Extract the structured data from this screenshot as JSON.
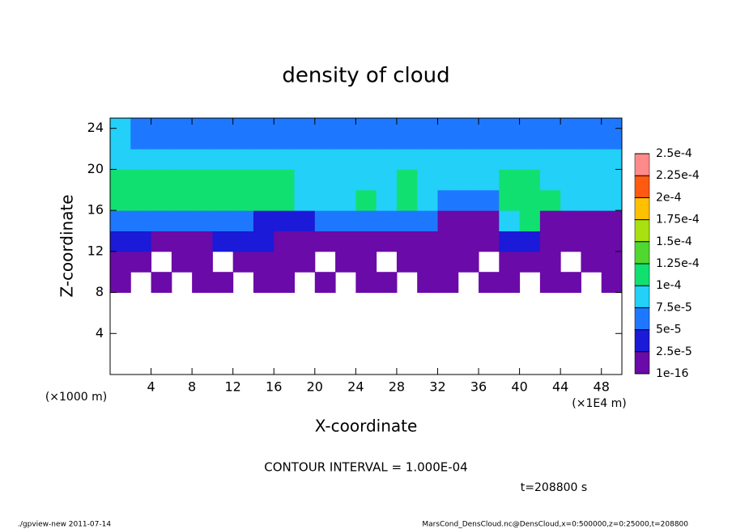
{
  "chart_data": {
    "type": "heatmap",
    "title": "density of cloud",
    "xlabel": "X-coordinate",
    "ylabel": "Z-coordinate",
    "x_unit": "(×1E4 m)",
    "y_unit": "(×1000 m)",
    "xlim": [
      0,
      50
    ],
    "ylim": [
      0,
      25
    ],
    "xticks": [
      4,
      8,
      12,
      16,
      20,
      24,
      28,
      32,
      36,
      40,
      44,
      48
    ],
    "yticks": [
      4,
      8,
      12,
      16,
      20,
      24
    ],
    "x_edges": [
      0,
      2,
      4,
      6,
      8,
      10,
      12,
      14,
      16,
      18,
      20,
      22,
      24,
      26,
      28,
      30,
      32,
      34,
      36,
      38,
      40,
      42,
      44,
      46,
      48,
      50
    ],
    "z_edges": [
      8,
      10,
      12,
      14,
      16,
      18,
      20,
      22,
      25
    ],
    "field": [
      [
        1e-05,
        null,
        1e-05,
        null,
        1e-05,
        1e-05,
        null,
        1e-05,
        1e-05,
        null,
        1e-05,
        null,
        1e-05,
        1e-05,
        null,
        1e-05,
        1e-05,
        null,
        1e-05,
        1e-05,
        null,
        1e-05,
        1e-05,
        null,
        1e-05
      ],
      [
        2e-05,
        1e-05,
        null,
        1e-05,
        1e-05,
        null,
        1e-05,
        1e-05,
        1e-05,
        1e-05,
        null,
        1e-05,
        1e-05,
        null,
        1e-05,
        1e-05,
        1e-05,
        1e-05,
        null,
        1e-05,
        1e-05,
        1e-05,
        null,
        1e-05,
        1e-05
      ],
      [
        3e-05,
        3e-05,
        2e-05,
        2e-05,
        2e-05,
        3e-05,
        4e-05,
        3e-05,
        2e-05,
        2e-05,
        2e-05,
        2e-05,
        2e-05,
        2e-05,
        2e-05,
        2e-05,
        2e-05,
        2e-05,
        2e-05,
        4e-05,
        3e-05,
        2e-05,
        2e-05,
        2e-05,
        2e-05
      ],
      [
        6e-05,
        6e-05,
        5e-05,
        6e-05,
        5e-05,
        6e-05,
        6e-05,
        4e-05,
        3e-05,
        4e-05,
        5e-05,
        6e-05,
        5e-05,
        6e-05,
        5e-05,
        6e-05,
        2e-05,
        2e-05,
        2e-05,
        8e-05,
        0.00011,
        2e-05,
        2e-05,
        2e-05,
        2e-05
      ],
      [
        0.000105,
        0.00011,
        0.000105,
        0.00011,
        0.000105,
        0.00011,
        0.000115,
        0.00012,
        0.00011,
        9e-05,
        8e-05,
        9e-05,
        0.000105,
        9e-05,
        0.000105,
        9e-05,
        6e-05,
        6e-05,
        5e-05,
        0.00011,
        0.000115,
        0.000105,
        9e-05,
        8e-05,
        8e-05
      ],
      [
        0.0001,
        0.000105,
        0.00011,
        0.00011,
        0.000105,
        0.00011,
        0.000115,
        0.00012,
        0.000115,
        9e-05,
        8.5e-05,
        9e-05,
        9e-05,
        9e-05,
        0.000105,
        9e-05,
        8.5e-05,
        8e-05,
        8e-05,
        0.000105,
        0.00011,
        9e-05,
        8.5e-05,
        8.5e-05,
        8e-05
      ],
      [
        9e-05,
        9e-05,
        9e-05,
        9e-05,
        9e-05,
        9e-05,
        9.5e-05,
        9.5e-05,
        9e-05,
        8.5e-05,
        8e-05,
        8.5e-05,
        8.5e-05,
        8.5e-05,
        8.5e-05,
        8.5e-05,
        8e-05,
        8e-05,
        8e-05,
        9e-05,
        9e-05,
        8.5e-05,
        8e-05,
        8e-05,
        8e-05
      ],
      [
        8e-05,
        7e-05,
        7e-05,
        7e-05,
        7e-05,
        7e-05,
        7e-05,
        7e-05,
        7e-05,
        6e-05,
        7e-05,
        7e-05,
        7e-05,
        7e-05,
        7e-05,
        7e-05,
        7e-05,
        7e-05,
        7e-05,
        7e-05,
        7e-05,
        6e-05,
        7e-05,
        7e-05,
        7e-05
      ]
    ],
    "colorbar": {
      "levels": [
        {
          "value": 1e-16,
          "label": "1e-16"
        },
        {
          "value": 2.5e-05,
          "label": "2.5e-5"
        },
        {
          "value": 5e-05,
          "label": "5e-5"
        },
        {
          "value": 7.5e-05,
          "label": "7.5e-5"
        },
        {
          "value": 0.0001,
          "label": "1e-4"
        },
        {
          "value": 0.000125,
          "label": "1.25e-4"
        },
        {
          "value": 0.00015,
          "label": "1.5e-4"
        },
        {
          "value": 0.000175,
          "label": "1.75e-4"
        },
        {
          "value": 0.0002,
          "label": "2e-4"
        },
        {
          "value": 0.000225,
          "label": "2.25e-4"
        },
        {
          "value": 0.00025,
          "label": "2.5e-4"
        }
      ],
      "colors": [
        "#6a0aa8",
        "#1a1ad8",
        "#1e78ff",
        "#22d0f8",
        "#10e070",
        "#50d830",
        "#a8e010",
        "#ffc000",
        "#ff5a10",
        "#ff8a8a"
      ]
    },
    "contour_interval": "CONTOUR INTERVAL = 1.000E-04",
    "time_label": "t=208800 s",
    "footer_left": "./gpview-new  2011-07-14",
    "footer_right": "MarsCond_DensCloud.nc@DensCloud,x=0:500000,z=0:25000,t=208800"
  }
}
